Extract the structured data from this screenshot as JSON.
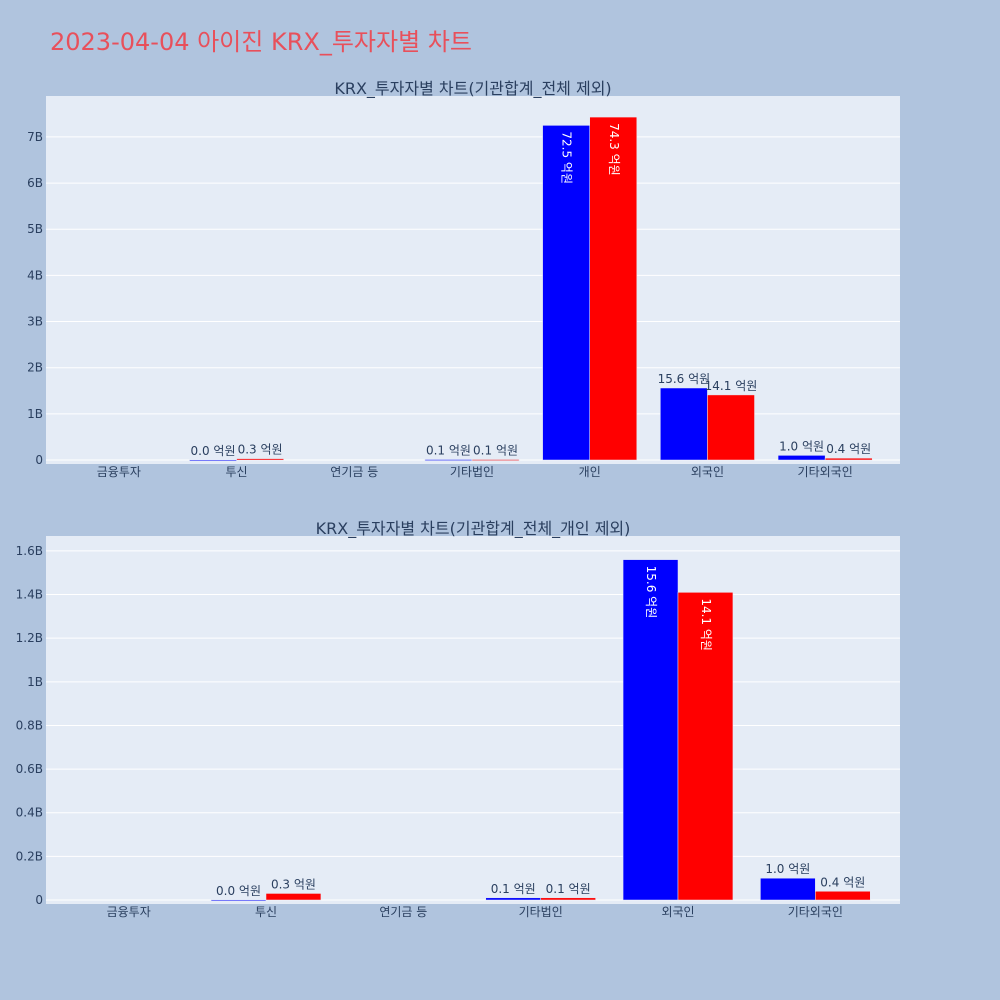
{
  "page_title": "2023-04-04 아이진 KRX_투자자별 차트",
  "colors": {
    "background": "#b0c4de",
    "plot_bg": "#e5ecf6",
    "grid": "#ffffff",
    "title": "#e8505b",
    "text": "#2a3f5f",
    "buy": "#0000ff",
    "sell": "#ff0000"
  },
  "chart_data": [
    {
      "type": "bar",
      "title": "KRX_투자자별 차트(기관합계_전체 제외)",
      "categories": [
        "금융투자",
        "투신",
        "연기금 등",
        "기타법인",
        "개인",
        "외국인",
        "기타외국인"
      ],
      "series": [
        {
          "color": "#0000ff",
          "values": [
            0,
            1000000,
            0,
            10000000,
            7250000000,
            1560000000,
            100000000
          ],
          "labels": [
            "",
            "0.0 억원",
            "",
            "0.1 억원",
            "72.5 억원",
            "15.6 억원",
            "1.0 억원"
          ]
        },
        {
          "color": "#ff0000",
          "values": [
            0,
            30000000,
            0,
            10000000,
            7430000000,
            1410000000,
            40000000
          ],
          "labels": [
            "",
            "0.3 억원",
            "",
            "0.1 억원",
            "74.3 억원",
            "14.1 억원",
            "0.4 억원"
          ]
        }
      ],
      "ylim": [
        0,
        7800000000
      ],
      "yticks": [
        0,
        1000000000,
        2000000000,
        3000000000,
        4000000000,
        5000000000,
        6000000000,
        7000000000
      ],
      "ytick_labels": [
        "0",
        "1B",
        "2B",
        "3B",
        "4B",
        "5B",
        "6B",
        "7B"
      ],
      "grid": true
    },
    {
      "type": "bar",
      "title": "KRX_투자자별 차트(기관합계_전체_개인 제외)",
      "categories": [
        "금융투자",
        "투신",
        "연기금 등",
        "기타법인",
        "외국인",
        "기타외국인"
      ],
      "series": [
        {
          "color": "#0000ff",
          "values": [
            0,
            1000000,
            0,
            10000000,
            1560000000,
            100000000
          ],
          "labels": [
            "",
            "0.0 억원",
            "",
            "0.1 억원",
            "15.6 억원",
            "1.0 억원"
          ]
        },
        {
          "color": "#ff0000",
          "values": [
            0,
            30000000,
            0,
            10000000,
            1410000000,
            40000000
          ],
          "labels": [
            "",
            "0.3 억원",
            "",
            "0.1 억원",
            "14.1 억원",
            "0.4 억원"
          ]
        }
      ],
      "ylim": [
        0,
        1650000000
      ],
      "yticks": [
        0,
        200000000,
        400000000,
        600000000,
        800000000,
        1000000000,
        1200000000,
        1400000000,
        1600000000
      ],
      "ytick_labels": [
        "0",
        "0.2B",
        "0.4B",
        "0.6B",
        "0.8B",
        "1B",
        "1.2B",
        "1.4B",
        "1.6B"
      ],
      "grid": true
    }
  ]
}
